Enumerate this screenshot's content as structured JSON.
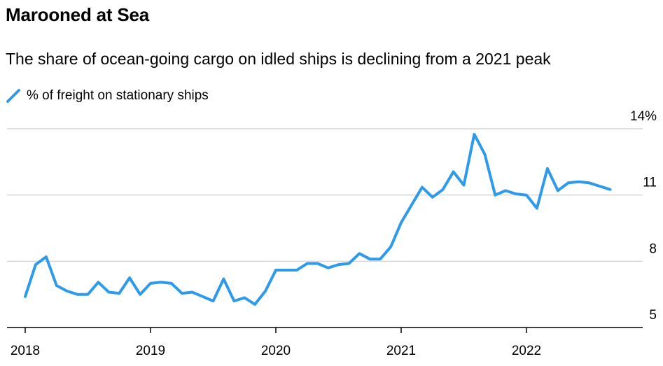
{
  "title": "Marooned at Sea",
  "subtitle": "The share of ocean-going cargo on idled ships is declining from a 2021 peak",
  "legend": {
    "label": "% of freight on stationary ships"
  },
  "colors": {
    "series": "#2E9BEA",
    "grid": "#D6D6D6",
    "axis": "#000000",
    "text": "#000000"
  },
  "chart_data": {
    "type": "line",
    "title": "Marooned at Sea",
    "subtitle": "The share of ocean-going cargo on idled ships is declining from a 2021 peak",
    "xlabel": "",
    "ylabel": "",
    "ylim": [
      5,
      14
    ],
    "xlim": [
      2018,
      2022.95
    ],
    "y_ticks": [
      {
        "value": 14,
        "label": "14%"
      },
      {
        "value": 11,
        "label": "11"
      },
      {
        "value": 8,
        "label": "8"
      },
      {
        "value": 5,
        "label": "5"
      }
    ],
    "x_ticks": [
      {
        "value": 2018,
        "label": "2018"
      },
      {
        "value": 2019,
        "label": "2019"
      },
      {
        "value": 2020,
        "label": "2020"
      },
      {
        "value": 2021,
        "label": "2021"
      },
      {
        "value": 2022,
        "label": "2022"
      }
    ],
    "grid": true,
    "legend_position": "top-left",
    "series": [
      {
        "name": "% of freight on stationary ships",
        "x": [
          2018.0,
          2018.083,
          2018.167,
          2018.25,
          2018.333,
          2018.417,
          2018.5,
          2018.583,
          2018.667,
          2018.75,
          2018.833,
          2018.917,
          2019.0,
          2019.083,
          2019.167,
          2019.25,
          2019.333,
          2019.417,
          2019.5,
          2019.583,
          2019.667,
          2019.75,
          2019.833,
          2019.917,
          2020.0,
          2020.083,
          2020.167,
          2020.25,
          2020.333,
          2020.417,
          2020.5,
          2020.583,
          2020.667,
          2020.75,
          2020.833,
          2020.917,
          2021.0,
          2021.083,
          2021.167,
          2021.25,
          2021.333,
          2021.417,
          2021.5,
          2021.583,
          2021.667,
          2021.75,
          2021.833,
          2021.917,
          2022.0,
          2022.083,
          2022.167,
          2022.25,
          2022.333,
          2022.417,
          2022.5,
          2022.583,
          2022.667
        ],
        "values": [
          6.4,
          7.85,
          8.2,
          6.9,
          6.65,
          6.5,
          6.5,
          7.05,
          6.6,
          6.55,
          7.25,
          6.5,
          7.0,
          7.05,
          7.0,
          6.55,
          6.6,
          6.4,
          6.2,
          7.2,
          6.2,
          6.35,
          6.05,
          6.65,
          7.6,
          7.6,
          7.6,
          7.9,
          7.9,
          7.7,
          7.85,
          7.9,
          8.35,
          8.1,
          8.1,
          8.65,
          9.75,
          10.55,
          11.35,
          10.9,
          11.25,
          12.05,
          11.45,
          13.75,
          12.85,
          11.0,
          11.2,
          11.05,
          11.0,
          10.4,
          12.2,
          11.2,
          11.55,
          11.6,
          11.55,
          11.4,
          11.25
        ]
      }
    ]
  }
}
